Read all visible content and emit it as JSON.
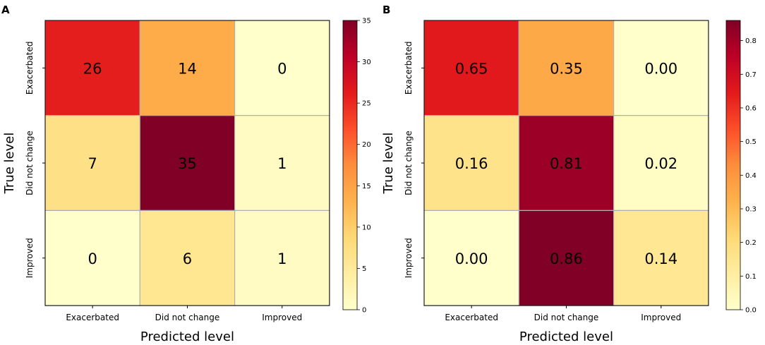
{
  "chart_data": [
    {
      "type": "heatmap",
      "panel": "A",
      "title": "",
      "xlabel": "Predicted level",
      "ylabel": "True level",
      "x_categories": [
        "Exacerbated",
        "Did not change",
        "Improved"
      ],
      "y_categories": [
        "Exacerbated",
        "Did not change",
        "Improved"
      ],
      "values": [
        [
          26,
          14,
          0
        ],
        [
          7,
          35,
          1
        ],
        [
          0,
          6,
          1
        ]
      ],
      "cell_labels": [
        [
          "26",
          "14",
          "0"
        ],
        [
          "7",
          "35",
          "1"
        ],
        [
          "0",
          "6",
          "1"
        ]
      ],
      "colorbar": {
        "min": 0,
        "max": 35,
        "ticks": [
          "0",
          "5",
          "10",
          "15",
          "20",
          "25",
          "30",
          "35"
        ]
      },
      "colormap": [
        "#ffffcc",
        "#ffeda0",
        "#fed976",
        "#feb24c",
        "#fd8d3c",
        "#fc4e2a",
        "#e31a1c",
        "#bd0026",
        "#800026"
      ]
    },
    {
      "type": "heatmap",
      "panel": "B",
      "title": "",
      "xlabel": "Predicted level",
      "ylabel": "True level",
      "x_categories": [
        "Exacerbated",
        "Did not change",
        "Improved"
      ],
      "y_categories": [
        "Exacerbated",
        "Did not change",
        "Improved"
      ],
      "values": [
        [
          0.65,
          0.35,
          0.0
        ],
        [
          0.16,
          0.81,
          0.02
        ],
        [
          0.0,
          0.86,
          0.14
        ]
      ],
      "cell_labels": [
        [
          "0.65",
          "0.35",
          "0.00"
        ],
        [
          "0.16",
          "0.81",
          "0.02"
        ],
        [
          "0.00",
          "0.86",
          "0.14"
        ]
      ],
      "colorbar": {
        "min": 0,
        "max": 0.86,
        "ticks": [
          "0.0",
          "0.1",
          "0.2",
          "0.3",
          "0.4",
          "0.5",
          "0.6",
          "0.7",
          "0.8"
        ]
      },
      "colormap": [
        "#ffffcc",
        "#ffeda0",
        "#fed976",
        "#feb24c",
        "#fd8d3c",
        "#fc4e2a",
        "#e31a1c",
        "#bd0026",
        "#800026"
      ]
    }
  ]
}
